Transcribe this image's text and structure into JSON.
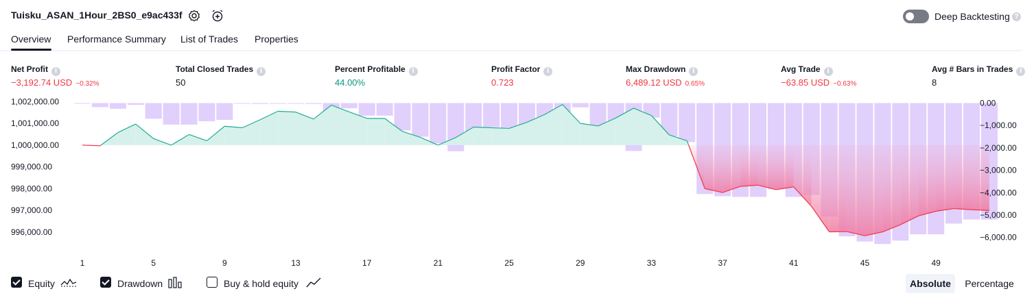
{
  "header": {
    "title": "Tuisku_ASAN_1Hour_2BS0_e9ac433f",
    "deep_backtesting_label": "Deep Backtesting",
    "deep_backtesting_enabled": false
  },
  "tabs": [
    {
      "label": "Overview",
      "active": true
    },
    {
      "label": "Performance Summary",
      "active": false
    },
    {
      "label": "List of Trades",
      "active": false
    },
    {
      "label": "Properties",
      "active": false
    }
  ],
  "stats": [
    {
      "label": "Net Profit",
      "value": "−3,192.74 USD",
      "pct": "−0.32%",
      "tone": "neg"
    },
    {
      "label": "Total Closed Trades",
      "value": "50",
      "pct": "",
      "tone": "neu"
    },
    {
      "label": "Percent Profitable",
      "value": "44.00%",
      "pct": "",
      "tone": "pos"
    },
    {
      "label": "Profit Factor",
      "value": "0.723",
      "pct": "",
      "tone": "neg"
    },
    {
      "label": "Max Drawdown",
      "value": "6,489.12 USD",
      "pct": "0.65%",
      "tone": "neg"
    },
    {
      "label": "Avg Trade",
      "value": "−63.85 USD",
      "pct": "−0.63%",
      "tone": "neg"
    },
    {
      "label": "Avg # Bars in Trades",
      "value": "8",
      "pct": "",
      "tone": "neu"
    }
  ],
  "chart_data": {
    "type": "line",
    "title": "",
    "left_axis": {
      "ticks": [
        "1,002,000.00",
        "1,001,000.00",
        "1,000,000.00",
        "999,000.00",
        "998,000.00",
        "997,000.00",
        "996,000.00"
      ],
      "range": [
        995900,
        1002060
      ]
    },
    "right_axis": {
      "ticks": [
        "0.00",
        "−1,000.00",
        "−2,000.00",
        "−3,000.00",
        "−4,000.00",
        "−5,000.00",
        "−6,000.00"
      ],
      "range": [
        -6500,
        0
      ]
    },
    "x_ticks": [
      "1",
      "5",
      "9",
      "13",
      "17",
      "21",
      "25",
      "29",
      "33",
      "37",
      "41",
      "45",
      "49"
    ],
    "x_range": [
      1,
      52
    ],
    "baseline": 1000000,
    "series": [
      {
        "name": "Equity",
        "x": [
          1,
          2,
          3,
          4,
          5,
          6,
          7,
          8,
          9,
          10,
          11,
          12,
          13,
          14,
          15,
          16,
          17,
          18,
          19,
          20,
          21,
          22,
          23,
          24,
          25,
          26,
          27,
          28,
          29,
          30,
          31,
          32,
          33,
          34,
          35,
          36,
          37,
          38,
          39,
          40,
          41,
          42,
          43,
          44,
          45,
          46,
          47,
          48,
          49,
          50,
          51,
          52
        ],
        "values": [
          1000000,
          999970,
          1000580,
          1000970,
          1000300,
          1000000,
          1000490,
          1000200,
          1000870,
          1000800,
          1001170,
          1001560,
          1001520,
          1001200,
          1001840,
          1001530,
          1001230,
          1001230,
          1000630,
          1000360,
          1000000,
          1000350,
          1000830,
          1000800,
          1000770,
          1001050,
          1001410,
          1001870,
          1001000,
          1000880,
          1001250,
          1001700,
          1001360,
          1000470,
          1000200,
          998000,
          997820,
          998100,
          998160,
          997950,
          998080,
          997180,
          996010,
          996020,
          995830,
          996010,
          996340,
          996740,
          996960,
          997080,
          997030,
          996990
        ]
      },
      {
        "name": "Drawdown",
        "x": [
          1,
          2,
          3,
          4,
          5,
          6,
          7,
          8,
          9,
          10,
          11,
          12,
          13,
          14,
          15,
          16,
          17,
          18,
          19,
          20,
          21,
          22,
          23,
          24,
          25,
          26,
          27,
          28,
          29,
          30,
          31,
          32,
          33,
          34,
          35,
          36,
          37,
          38,
          39,
          40,
          41,
          42,
          43,
          44,
          45,
          46,
          47,
          48,
          49,
          50,
          51,
          52
        ],
        "values": [
          -30,
          -180,
          -250,
          -80,
          -700,
          -960,
          -960,
          -810,
          -750,
          -30,
          -40,
          -30,
          -30,
          -40,
          -490,
          -230,
          -560,
          -560,
          -1220,
          -1500,
          -1800,
          -2150,
          -1470,
          -1070,
          -1100,
          -1100,
          -1100,
          -550,
          -190,
          -1240,
          -850,
          -2140,
          -650,
          -1490,
          -1740,
          -4060,
          -4160,
          -4190,
          -4190,
          -3830,
          -4190,
          -4100,
          -5070,
          -5950,
          -6180,
          -6290,
          -6140,
          -5860,
          -5860,
          -5380,
          -5200,
          -5200
        ]
      },
      {
        "name": "Buy & hold equity",
        "values": []
      }
    ]
  },
  "legend": [
    {
      "label": "Equity",
      "checked": true,
      "icon": "equity-line-icon"
    },
    {
      "label": "Drawdown",
      "checked": true,
      "icon": "drawdown-bars-icon"
    },
    {
      "label": "Buy & hold equity",
      "checked": false,
      "icon": "trend-line-icon"
    }
  ],
  "mode_buttons": {
    "absolute": "Absolute",
    "percentage": "Percentage",
    "selected": "Absolute"
  },
  "colors": {
    "equity_line_up": "#22ab94",
    "equity_line_down": "#f23645",
    "equity_fill_up": "#d6f1eb",
    "equity_fill_down": "#f6a5c0",
    "drawdown_bar": "#dcc7fb",
    "text": "#131722",
    "negative": "#f23645",
    "positive": "#089981"
  }
}
